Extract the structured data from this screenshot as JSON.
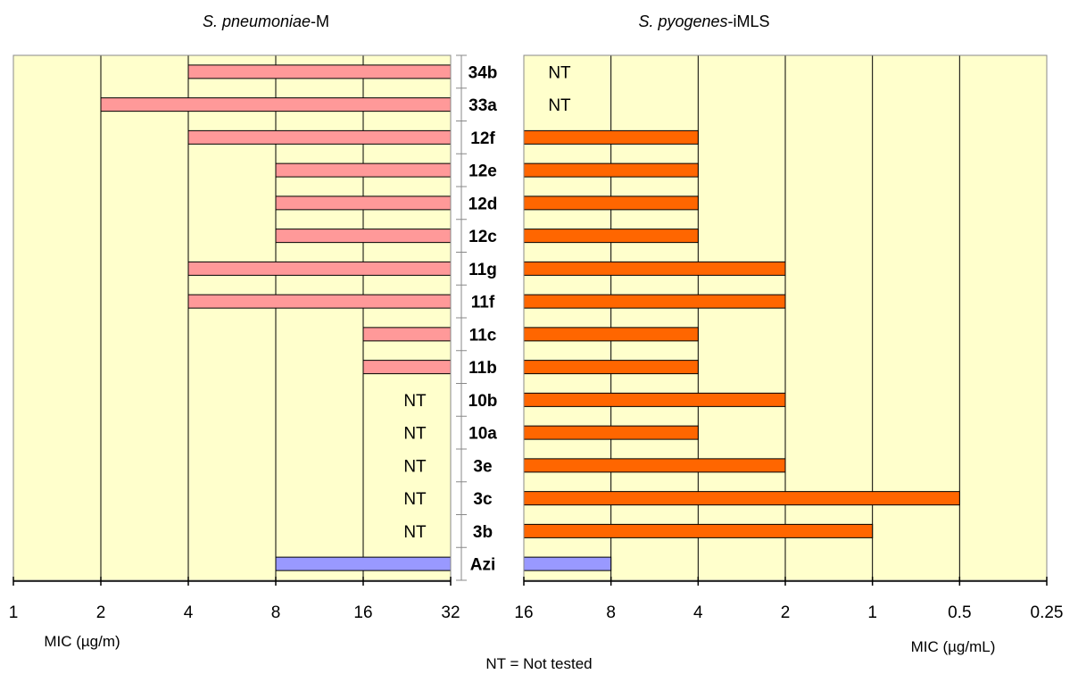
{
  "chart_data": [
    {
      "type": "bar",
      "orientation": "horizontal",
      "title_italic": "S. pneumoniae",
      "title_suffix": "-M",
      "xlabel": "MIC (µg/m)",
      "x_scale": "log2",
      "xlim": [
        1,
        32
      ],
      "x_ticks": [
        "1",
        "2",
        "4",
        "8",
        "16",
        "32"
      ],
      "bars_extend_from": 32,
      "categories": [
        "34b",
        "33a",
        "12f",
        "12e",
        "12d",
        "12c",
        "11g",
        "11f",
        "11c",
        "11b",
        "10b",
        "10a",
        "3e",
        "3c",
        "3b",
        "Azi"
      ],
      "values": [
        4,
        2,
        4,
        8,
        8,
        8,
        4,
        4,
        16,
        16,
        null,
        null,
        null,
        null,
        null,
        8
      ],
      "bar_color": "#ff9999",
      "azi_color": "#9999ff",
      "not_tested_label": "NT",
      "grid": true,
      "background": "#ffffcc"
    },
    {
      "type": "bar",
      "orientation": "horizontal",
      "title_italic": "S. pyogenes",
      "title_suffix": "-iMLS",
      "xlabel": "MIC (µg/mL)",
      "x_scale": "log2_reversed",
      "xlim": [
        16,
        0.25
      ],
      "x_ticks": [
        "16",
        "8",
        "4",
        "2",
        "1",
        "0.5",
        "0.25"
      ],
      "bars_extend_from": 16,
      "categories": [
        "34b",
        "33a",
        "12f",
        "12e",
        "12d",
        "12c",
        "11g",
        "11f",
        "11c",
        "11b",
        "10b",
        "10a",
        "3e",
        "3c",
        "3b",
        "Azi"
      ],
      "values": [
        null,
        null,
        4,
        4,
        4,
        4,
        2,
        2,
        4,
        4,
        2,
        4,
        2,
        0.5,
        1,
        8
      ],
      "bar_color": "#ff6600",
      "azi_color": "#9999ff",
      "not_tested_label": "NT",
      "grid": true,
      "background": "#ffffcc"
    }
  ],
  "footnote": "NT = Not tested"
}
